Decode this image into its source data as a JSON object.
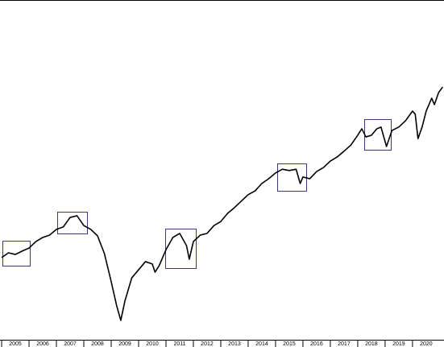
{
  "chart_data": {
    "type": "line",
    "x": [
      2005.0,
      2005.25,
      2005.5,
      2005.75,
      2006.0,
      2006.25,
      2006.5,
      2006.75,
      2007.0,
      2007.25,
      2007.5,
      2007.75,
      2008.0,
      2008.25,
      2008.5,
      2008.75,
      2009.0,
      2009.2,
      2009.35,
      2009.5,
      2009.75,
      2010.0,
      2010.25,
      2010.5,
      2010.6,
      2010.75,
      2011.0,
      2011.25,
      2011.5,
      2011.75,
      2011.85,
      2012.0,
      2012.25,
      2012.5,
      2012.75,
      2013.0,
      2013.25,
      2013.5,
      2013.75,
      2014.0,
      2014.25,
      2014.5,
      2014.75,
      2015.0,
      2015.25,
      2015.5,
      2015.75,
      2015.9,
      2016.0,
      2016.25,
      2016.5,
      2016.75,
      2017.0,
      2017.25,
      2017.5,
      2017.75,
      2018.0,
      2018.15,
      2018.3,
      2018.5,
      2018.7,
      2018.85,
      2019.05,
      2019.25,
      2019.5,
      2019.75,
      2020.0,
      2020.1,
      2020.2,
      2020.35,
      2020.5,
      2020.7,
      2020.8,
      2020.95,
      2021.1
    ],
    "series": [
      {
        "color": "#000000",
        "values": [
          24.2,
          25.6,
          25.1,
          26.1,
          27.0,
          28.9,
          30.1,
          30.8,
          32.5,
          33.2,
          36.0,
          36.5,
          33.6,
          32.5,
          30.6,
          25.4,
          17.1,
          10.0,
          5.7,
          11.4,
          18.2,
          20.6,
          23.0,
          22.3,
          19.9,
          21.8,
          26.5,
          30.1,
          31.3,
          27.7,
          23.7,
          28.9,
          30.8,
          31.3,
          33.6,
          34.8,
          37.2,
          38.9,
          40.8,
          42.7,
          43.8,
          46.0,
          47.4,
          49.1,
          50.2,
          49.8,
          50.2,
          46.0,
          47.9,
          47.4,
          49.5,
          50.7,
          52.6,
          53.8,
          55.5,
          57.3,
          60.2,
          62.1,
          59.7,
          60.2,
          62.1,
          62.6,
          56.9,
          61.6,
          62.6,
          64.5,
          67.3,
          66.4,
          59.2,
          62.6,
          67.3,
          71.1,
          69.2,
          72.7,
          74.4
        ]
      }
    ],
    "xlim": [
      2004.94,
      2021.15
    ],
    "ylim": [
      0,
      100
    ],
    "xticks": [
      {
        "value": 2005.5,
        "label": "2005"
      },
      {
        "value": 2006.5,
        "label": "2006"
      },
      {
        "value": 2007.5,
        "label": "2007"
      },
      {
        "value": 2008.5,
        "label": "2008"
      },
      {
        "value": 2009.5,
        "label": "2009"
      },
      {
        "value": 2010.5,
        "label": "2010"
      },
      {
        "value": 2011.5,
        "label": "2011"
      },
      {
        "value": 2012.5,
        "label": "2012"
      },
      {
        "value": 2013.5,
        "label": "2013"
      },
      {
        "value": 2014.5,
        "label": "2014"
      },
      {
        "value": 2015.5,
        "label": "2015"
      },
      {
        "value": 2016.5,
        "label": "2016"
      },
      {
        "value": 2017.5,
        "label": "2017"
      },
      {
        "value": 2018.5,
        "label": "2018"
      },
      {
        "value": 2019.5,
        "label": "2019"
      },
      {
        "value": 2020.5,
        "label": "2020"
      }
    ]
  }
}
